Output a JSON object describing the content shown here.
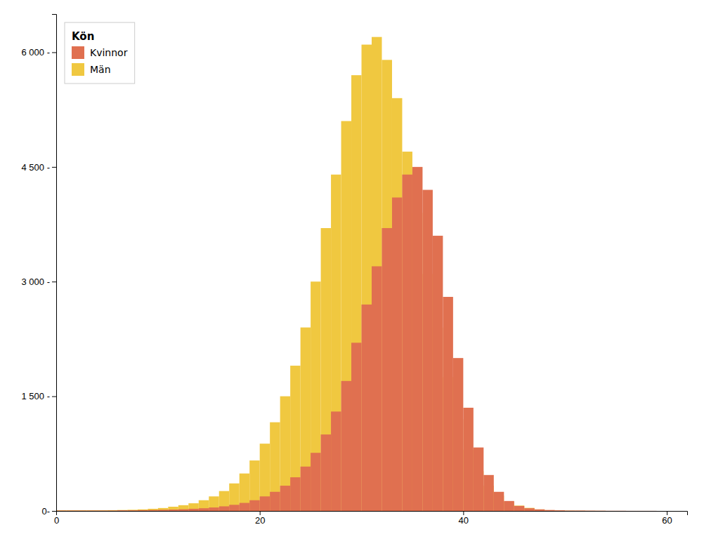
{
  "chart_data": {
    "type": "histogram",
    "legend_title": "Kön",
    "bins": [
      0,
      1,
      2,
      3,
      4,
      5,
      6,
      7,
      8,
      9,
      10,
      11,
      12,
      13,
      14,
      15,
      16,
      17,
      18,
      19,
      20,
      21,
      22,
      23,
      24,
      25,
      26,
      27,
      28,
      29,
      30,
      31,
      32,
      33,
      34,
      35,
      36,
      37,
      38,
      39,
      40,
      41,
      42,
      43,
      44,
      45,
      46,
      47,
      48,
      49,
      50,
      51,
      52,
      53,
      54,
      55,
      56,
      57,
      58,
      59,
      60
    ],
    "series": [
      {
        "name": "Kvinnor",
        "color": "#e07050",
        "values": [
          5,
          5,
          5,
          5,
          5,
          5,
          8,
          8,
          10,
          12,
          15,
          18,
          22,
          28,
          35,
          45,
          60,
          80,
          105,
          140,
          190,
          250,
          330,
          440,
          580,
          760,
          1000,
          1300,
          1700,
          2200,
          2700,
          3200,
          3700,
          4100,
          4400,
          4500,
          4200,
          3600,
          2800,
          2000,
          1350,
          830,
          470,
          250,
          130,
          65,
          35,
          20,
          12,
          8,
          5,
          5,
          4,
          3,
          2,
          2,
          1,
          1,
          1,
          0
        ]
      },
      {
        "name": "Män",
        "color": "#f0c840",
        "values": [
          8,
          8,
          8,
          8,
          8,
          10,
          12,
          15,
          20,
          28,
          38,
          55,
          75,
          100,
          140,
          190,
          260,
          360,
          490,
          660,
          880,
          1160,
          1500,
          1900,
          2400,
          3000,
          3700,
          4400,
          5100,
          5700,
          6100,
          6200,
          5900,
          5400,
          4700,
          3900,
          3100,
          2400,
          1750,
          1200,
          800,
          520,
          330,
          200,
          120,
          70,
          40,
          20,
          10,
          5,
          3,
          2,
          1,
          1,
          0,
          0,
          0,
          0,
          0,
          0
        ]
      }
    ],
    "xlim": [
      0,
      62
    ],
    "xticks": [
      0,
      20,
      40,
      60
    ],
    "ylim": [
      0,
      6500
    ],
    "yticks": [
      {
        "value": 0,
        "label": "0-"
      },
      {
        "value": 1500,
        "label": "1 500 -"
      },
      {
        "value": 3000,
        "label": "3 000 -"
      },
      {
        "value": 4500,
        "label": "4 500 -"
      },
      {
        "value": 6000,
        "label": "6 000 -"
      }
    ],
    "grid": false,
    "legend": "upper left"
  }
}
